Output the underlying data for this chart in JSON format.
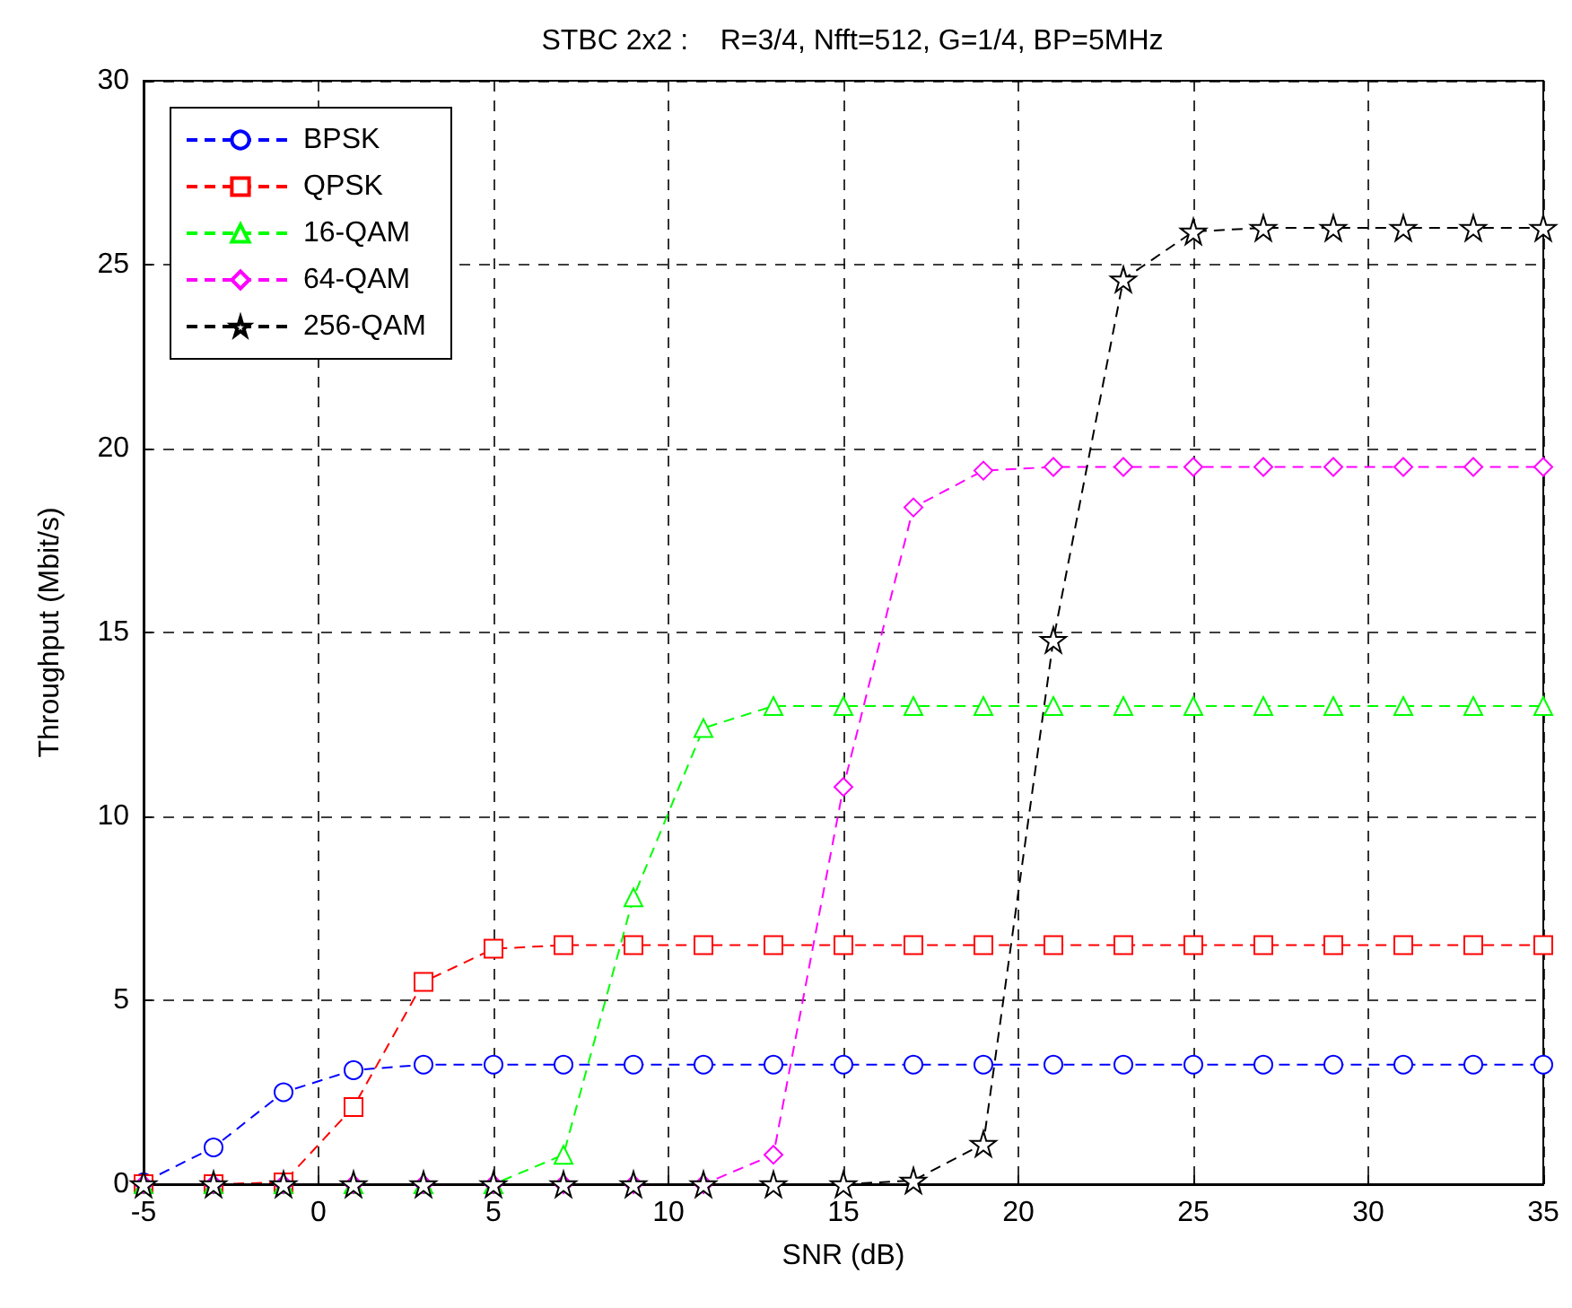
{
  "chart_data": {
    "type": "line",
    "title": "STBC 2x2 :    R=3/4, Nfft=512, G=1/4, BP=5MHz",
    "xlabel": "SNR (dB)",
    "ylabel": "Throughput (Mbit/s)",
    "x": [
      -5,
      -3,
      -1,
      1,
      3,
      5,
      7,
      9,
      11,
      13,
      15,
      17,
      19,
      21,
      23,
      25,
      27,
      29,
      31,
      33,
      35
    ],
    "series": [
      {
        "name": "BPSK",
        "color": "#0000ff",
        "marker": "circle",
        "values": [
          0.05,
          1.0,
          2.5,
          3.1,
          3.25,
          3.25,
          3.25,
          3.25,
          3.25,
          3.25,
          3.25,
          3.25,
          3.25,
          3.25,
          3.25,
          3.25,
          3.25,
          3.25,
          3.25,
          3.25,
          3.25
        ]
      },
      {
        "name": "QPSK",
        "color": "#ff0000",
        "marker": "square",
        "values": [
          0,
          0,
          0.05,
          2.1,
          5.5,
          6.4,
          6.5,
          6.5,
          6.5,
          6.5,
          6.5,
          6.5,
          6.5,
          6.5,
          6.5,
          6.5,
          6.5,
          6.5,
          6.5,
          6.5,
          6.5
        ]
      },
      {
        "name": "16-QAM",
        "color": "#00ff00",
        "marker": "triangle",
        "values": [
          0,
          0,
          0,
          0,
          0,
          0,
          0.8,
          7.8,
          12.4,
          13,
          13,
          13,
          13,
          13,
          13,
          13,
          13,
          13,
          13,
          13,
          13
        ]
      },
      {
        "name": "64-QAM",
        "color": "#ff00ff",
        "marker": "diamond",
        "values": [
          0,
          0,
          0,
          0,
          0,
          0,
          0,
          0,
          0,
          0.8,
          10.8,
          18.4,
          19.4,
          19.5,
          19.5,
          19.5,
          19.5,
          19.5,
          19.5,
          19.5,
          19.5
        ]
      },
      {
        "name": "256-QAM",
        "color": "#000000",
        "marker": "star",
        "values": [
          0,
          0,
          0,
          0,
          0,
          0,
          0,
          0,
          0,
          0,
          0,
          0.1,
          1.1,
          14.8,
          24.6,
          25.9,
          26,
          26,
          26,
          26,
          26
        ]
      }
    ],
    "xlim": [
      -5,
      35
    ],
    "xticks": [
      -5,
      0,
      5,
      10,
      15,
      20,
      25,
      30,
      35
    ],
    "ylim": [
      0,
      30
    ],
    "yticks": [
      0,
      5,
      10,
      15,
      20,
      25,
      30
    ],
    "grid": true,
    "legend": "top left",
    "line_style": "dashed"
  }
}
